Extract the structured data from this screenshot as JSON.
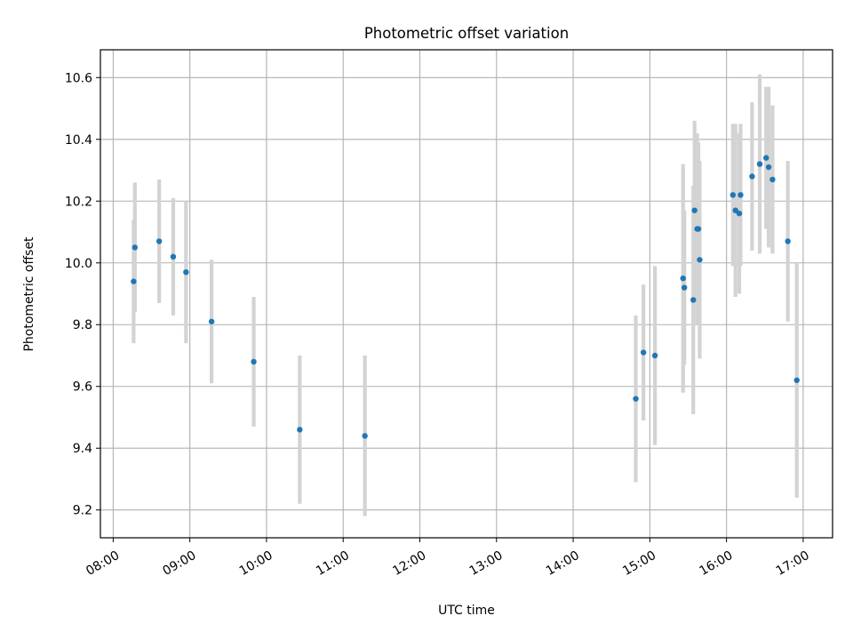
{
  "chart_data": {
    "type": "scatter",
    "title": "Photometric offset variation",
    "xlabel": "UTC time",
    "ylabel": "Photometric offset",
    "x_tick_labels": [
      "08:00",
      "09:00",
      "10:00",
      "11:00",
      "12:00",
      "13:00",
      "14:00",
      "15:00",
      "16:00",
      "17:00"
    ],
    "y_tick_labels": [
      "9.2",
      "9.4",
      "9.6",
      "9.8",
      "10.0",
      "10.2",
      "10.4",
      "10.6"
    ],
    "xlim": [
      "07:50",
      "17:23"
    ],
    "ylim": [
      9.11,
      10.69
    ],
    "grid": true,
    "x_ticklabel_rotation_deg": 30,
    "colors": {
      "point": "#1f77b4",
      "errorbar": "#d3d3d3",
      "grid": "#b0b0b0",
      "axes": "#000000"
    },
    "series": [
      {
        "points": [
          {
            "time": "08:16",
            "value": 9.94,
            "err": 0.2
          },
          {
            "time": "08:17",
            "value": 10.05,
            "err": 0.21
          },
          {
            "time": "08:36",
            "value": 10.07,
            "err": 0.2
          },
          {
            "time": "08:47",
            "value": 10.02,
            "err": 0.19
          },
          {
            "time": "08:57",
            "value": 9.97,
            "err": 0.23
          },
          {
            "time": "09:17",
            "value": 9.81,
            "err": 0.2
          },
          {
            "time": "09:50",
            "value": 9.68,
            "err": 0.21
          },
          {
            "time": "10:26",
            "value": 9.46,
            "err": 0.24
          },
          {
            "time": "11:17",
            "value": 9.44,
            "err": 0.26
          },
          {
            "time": "14:49",
            "value": 9.56,
            "err": 0.27
          },
          {
            "time": "14:55",
            "value": 9.71,
            "err": 0.22
          },
          {
            "time": "15:04",
            "value": 9.7,
            "err": 0.29
          },
          {
            "time": "15:26",
            "value": 9.95,
            "err": 0.37
          },
          {
            "time": "15:27",
            "value": 9.92,
            "err": 0.25
          },
          {
            "time": "15:34",
            "value": 9.88,
            "err": 0.37
          },
          {
            "time": "15:35",
            "value": 10.17,
            "err": 0.29
          },
          {
            "time": "15:37",
            "value": 10.11,
            "err": 0.31
          },
          {
            "time": "15:38",
            "value": 10.11,
            "err": 0.28
          },
          {
            "time": "15:39",
            "value": 10.01,
            "err": 0.32
          },
          {
            "time": "16:05",
            "value": 10.22,
            "err": 0.23
          },
          {
            "time": "16:07",
            "value": 10.17,
            "err": 0.28
          },
          {
            "time": "16:10",
            "value": 10.16,
            "err": 0.26
          },
          {
            "time": "16:11",
            "value": 10.22,
            "err": 0.23
          },
          {
            "time": "16:20",
            "value": 10.28,
            "err": 0.24
          },
          {
            "time": "16:26",
            "value": 10.32,
            "err": 0.29
          },
          {
            "time": "16:31",
            "value": 10.34,
            "err": 0.23
          },
          {
            "time": "16:33",
            "value": 10.31,
            "err": 0.26
          },
          {
            "time": "16:36",
            "value": 10.27,
            "err": 0.24
          },
          {
            "time": "16:48",
            "value": 10.07,
            "err": 0.26
          },
          {
            "time": "16:55",
            "value": 9.62,
            "err": 0.38
          }
        ]
      }
    ]
  }
}
